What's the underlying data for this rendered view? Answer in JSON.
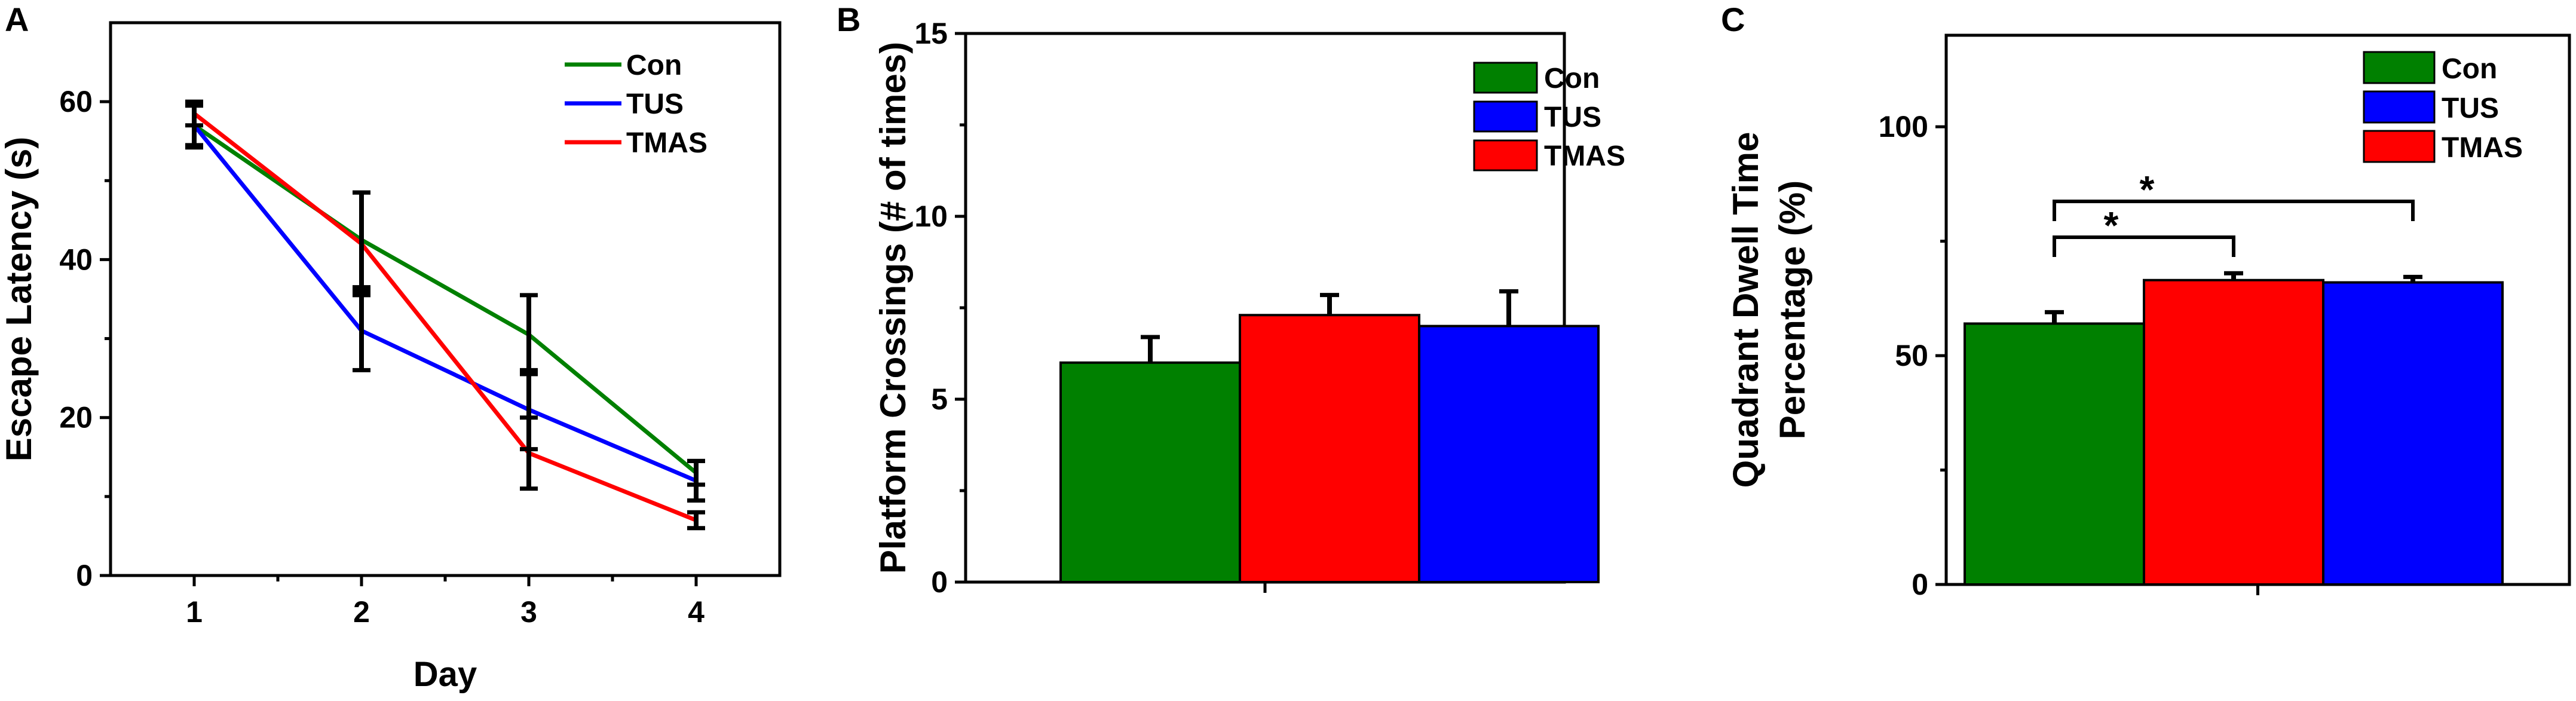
{
  "colors": {
    "Con": "#008000",
    "TUS": "#0000ff",
    "TMAS": "#ff0000",
    "axis": "#000000"
  },
  "chart_data": [
    {
      "panel": "A",
      "type": "line",
      "xlabel": "Day",
      "ylabel": "Escape Latency (s)",
      "x": [
        1,
        2,
        3,
        4
      ],
      "xticks": [
        "1",
        "2",
        "3",
        "4"
      ],
      "xlim": [
        0.5,
        4.5
      ],
      "ylim": [
        0,
        70
      ],
      "yticks": [
        0,
        20,
        40,
        60
      ],
      "ytick_labels": [
        "0",
        "20",
        "40",
        "60"
      ],
      "legend_position": "top-right",
      "series": [
        {
          "name": "Con",
          "color": "#008000",
          "values": [
            57.0,
            42.5,
            30.5,
            13.0
          ],
          "errors": [
            2.5,
            6.0,
            5.0,
            1.5
          ]
        },
        {
          "name": "TUS",
          "color": "#0000ff",
          "values": [
            57.0,
            31.0,
            21.0,
            12.0
          ],
          "errors": [
            2.8,
            5.0,
            5.0,
            2.5
          ]
        },
        {
          "name": "TMAS",
          "color": "#ff0000",
          "values": [
            58.5,
            42.0,
            15.5,
            7.0
          ],
          "errors": [
            1.5,
            6.5,
            4.5,
            1.0
          ]
        }
      ]
    },
    {
      "panel": "B",
      "type": "bar",
      "xlabel": "",
      "ylabel": "Platform Crossings (# of times)",
      "ylim": [
        0,
        15
      ],
      "yticks": [
        0,
        5,
        10,
        15
      ],
      "ytick_labels": [
        "0",
        "5",
        "10",
        "15"
      ],
      "legend_position": "top-right",
      "legend": [
        {
          "name": "Con",
          "color": "#008000"
        },
        {
          "name": "TUS",
          "color": "#0000ff"
        },
        {
          "name": "TMAS",
          "color": "#ff0000"
        }
      ],
      "bars": [
        {
          "series": "Con",
          "color": "#008000",
          "value": 6.0,
          "error": 0.7
        },
        {
          "series": "TMAS",
          "color": "#ff0000",
          "value": 7.3,
          "error": 0.55
        },
        {
          "series": "TUS",
          "color": "#0000ff",
          "value": 7.0,
          "error": 0.95
        }
      ]
    },
    {
      "panel": "C",
      "type": "bar",
      "xlabel": "",
      "ylabel": [
        "Quadrant Dwell Time",
        "Percentage (%)"
      ],
      "ylim": [
        0,
        120
      ],
      "yticks": [
        0,
        50,
        100
      ],
      "ytick_labels": [
        "0",
        "50",
        "100"
      ],
      "legend_position": "top-right",
      "legend": [
        {
          "name": "Con",
          "color": "#008000"
        },
        {
          "name": "TUS",
          "color": "#0000ff"
        },
        {
          "name": "TMAS",
          "color": "#ff0000"
        }
      ],
      "bars": [
        {
          "series": "Con",
          "color": "#008000",
          "value": 57.0,
          "error": 2.5
        },
        {
          "series": "TMAS",
          "color": "#ff0000",
          "value": 66.5,
          "error": 1.5
        },
        {
          "series": "TUS",
          "color": "#0000ff",
          "value": 66.0,
          "error": 1.2
        }
      ],
      "significance": [
        {
          "from": 0,
          "to": 1,
          "label": "*",
          "level": 84
        },
        {
          "from": 0,
          "to": 2,
          "label": "*",
          "level": 84
        }
      ]
    }
  ]
}
